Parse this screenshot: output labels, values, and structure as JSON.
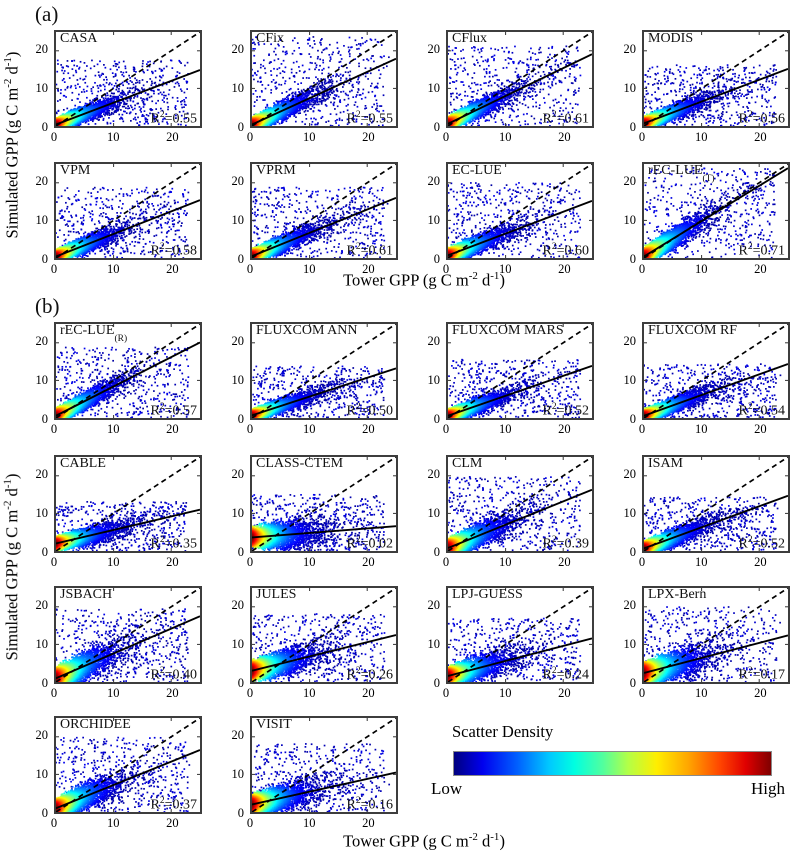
{
  "figure": {
    "panel_a": "(a)",
    "panel_b": "(b)",
    "x_label": {
      "pre": "Tower GPP (g C m",
      "sup1": "-2",
      "mid": " d",
      "sup2": "-1",
      "post": ")"
    },
    "y_label": {
      "pre": "Simulated GPP (g C m",
      "sup1": "-2",
      "mid": " d",
      "sup2": "-1",
      "post": ")"
    }
  },
  "legend": {
    "title": "Scatter Density",
    "low": "Low",
    "high": "High",
    "colormap": "jet",
    "colors": [
      "#00007f",
      "#0000ff",
      "#00bfff",
      "#00ffff",
      "#7dff7d",
      "#ffff00",
      "#ff7f00",
      "#ff0000",
      "#7f0000"
    ]
  },
  "chart_data": {
    "type": "scatter",
    "subtype": "density-scatter-grid",
    "xlabel": "Tower GPP (g C m-2 d-1)",
    "ylabel": "Simulated GPP (g C m-2 d-1)",
    "xlim": [
      0,
      25
    ],
    "ylim": [
      0,
      25
    ],
    "x_ticks": [
      "0",
      "10",
      "20"
    ],
    "y_ticks": [
      "0",
      "10",
      "20"
    ],
    "identity_line": "dashed 1:1 line in every subplot",
    "fit_line": "solid least-squares line in every subplot",
    "r2_format": {
      "r": "R",
      "sup": "2",
      "eq": "="
    },
    "panels": [
      {
        "id": "a",
        "subplots": [
          {
            "label": "CASA",
            "sub": "",
            "r2": "0.55",
            "fit": {
              "slope": 0.58,
              "intercept": 0.4
            },
            "cloud": {
              "sp": 1.6,
              "cap": 14,
              "xs": 3.0
            }
          },
          {
            "label": "CFix",
            "sub": "",
            "r2": "0.55",
            "fit": {
              "slope": 0.7,
              "intercept": 0.4
            },
            "cloud": {
              "sp": 1.8,
              "cap": 19,
              "xs": 3.2
            }
          },
          {
            "label": "CFlux",
            "sub": "",
            "r2": "0.61",
            "fit": {
              "slope": 0.74,
              "intercept": 0.6
            },
            "cloud": {
              "sp": 1.8,
              "cap": 17,
              "xs": 3.0
            }
          },
          {
            "label": "MODIS",
            "sub": "",
            "r2": "0.56",
            "fit": {
              "slope": 0.58,
              "intercept": 0.7
            },
            "cloud": {
              "sp": 1.6,
              "cap": 13,
              "xs": 3.0
            }
          },
          {
            "label": "VPM",
            "sub": "",
            "r2": "0.58",
            "fit": {
              "slope": 0.6,
              "intercept": 0.4
            },
            "cloud": {
              "sp": 1.7,
              "cap": 15,
              "xs": 3.0
            }
          },
          {
            "label": "VPRM",
            "sub": "",
            "r2": "0.61",
            "fit": {
              "slope": 0.62,
              "intercept": 0.5
            },
            "cloud": {
              "sp": 1.8,
              "cap": 15,
              "xs": 3.2
            }
          },
          {
            "label": "EC-LUE",
            "sub": "",
            "r2": "0.60",
            "fit": {
              "slope": 0.58,
              "intercept": 0.7
            },
            "cloud": {
              "sp": 1.8,
              "cap": 16,
              "xs": 3.0
            }
          },
          {
            "label": "rEC-LUE",
            "sub": "(T)",
            "r2": "0.71",
            "fit": {
              "slope": 0.94,
              "intercept": 0.4
            },
            "cloud": {
              "sp": 2.2,
              "cap": 20,
              "xs": 3.0
            }
          }
        ]
      },
      {
        "id": "b",
        "subplots": [
          {
            "label": "rEC-LUE",
            "sub": "(R)",
            "r2": "0.57",
            "fit": {
              "slope": 0.78,
              "intercept": 0.6
            },
            "cloud": {
              "sp": 1.9,
              "cap": 15,
              "xs": 3.0
            }
          },
          {
            "label": "FLUXCOM ANN",
            "sub": "",
            "r2": "0.50",
            "fit": {
              "slope": 0.5,
              "intercept": 0.7
            },
            "cloud": {
              "sp": 1.5,
              "cap": 11,
              "xs": 3.0
            }
          },
          {
            "label": "FLUXCOM MARS",
            "sub": "",
            "r2": "0.52",
            "fit": {
              "slope": 0.53,
              "intercept": 0.6
            },
            "cloud": {
              "sp": 1.6,
              "cap": 12.5,
              "xs": 3.0
            }
          },
          {
            "label": "FLUXCOM RF",
            "sub": "",
            "r2": "0.54",
            "fit": {
              "slope": 0.55,
              "intercept": 0.6
            },
            "cloud": {
              "sp": 1.6,
              "cap": 11.5,
              "xs": 3.0
            }
          },
          {
            "label": "CABLE",
            "sub": "",
            "r2": "0.35",
            "fit": {
              "slope": 0.36,
              "intercept": 2.0
            },
            "cloud": {
              "sp": 1.8,
              "cap": 10.5,
              "xs": 3.2
            }
          },
          {
            "label": "CLASS-CTEM",
            "sub": "",
            "r2": "0.02",
            "fit": {
              "slope": 0.12,
              "intercept": 3.6
            },
            "cloud": {
              "sp": 2.6,
              "cap": 12,
              "xs": 3.4
            }
          },
          {
            "label": "CLM",
            "sub": "",
            "r2": "0.39",
            "fit": {
              "slope": 0.62,
              "intercept": 0.8
            },
            "cloud": {
              "sp": 2.4,
              "cap": 16,
              "xs": 3.0
            }
          },
          {
            "label": "ISAM",
            "sub": "",
            "r2": "0.52",
            "fit": {
              "slope": 0.56,
              "intercept": 0.7
            },
            "cloud": {
              "sp": 1.8,
              "cap": 11.5,
              "xs": 3.2
            }
          },
          {
            "label": "JSBACH",
            "sub": "",
            "r2": "0.40",
            "fit": {
              "slope": 0.66,
              "intercept": 1.0
            },
            "cloud": {
              "sp": 2.8,
              "cap": 15.5,
              "xs": 3.0
            }
          },
          {
            "label": "JULES",
            "sub": "",
            "r2": "0.26",
            "fit": {
              "slope": 0.38,
              "intercept": 3.0
            },
            "cloud": {
              "sp": 2.6,
              "cap": 14.5,
              "xs": 3.0
            }
          },
          {
            "label": "LPJ-GUESS",
            "sub": "",
            "r2": "0.24",
            "fit": {
              "slope": 0.4,
              "intercept": 1.6
            },
            "cloud": {
              "sp": 2.3,
              "cap": 13.5,
              "xs": 3.0
            }
          },
          {
            "label": "LPX-Bern",
            "sub": "",
            "r2": "0.17",
            "fit": {
              "slope": 0.4,
              "intercept": 2.4
            },
            "cloud": {
              "sp": 2.9,
              "cap": 16,
              "xs": 3.0
            }
          },
          {
            "label": "ORCHIDEE",
            "sub": "",
            "r2": "0.37",
            "fit": {
              "slope": 0.62,
              "intercept": 1.0
            },
            "cloud": {
              "sp": 2.5,
              "cap": 16,
              "xs": 3.0
            }
          },
          {
            "label": "VISIT",
            "sub": "",
            "r2": "0.16",
            "fit": {
              "slope": 0.34,
              "intercept": 2.0
            },
            "cloud": {
              "sp": 2.5,
              "cap": 14.5,
              "xs": 3.0
            }
          }
        ]
      }
    ]
  }
}
